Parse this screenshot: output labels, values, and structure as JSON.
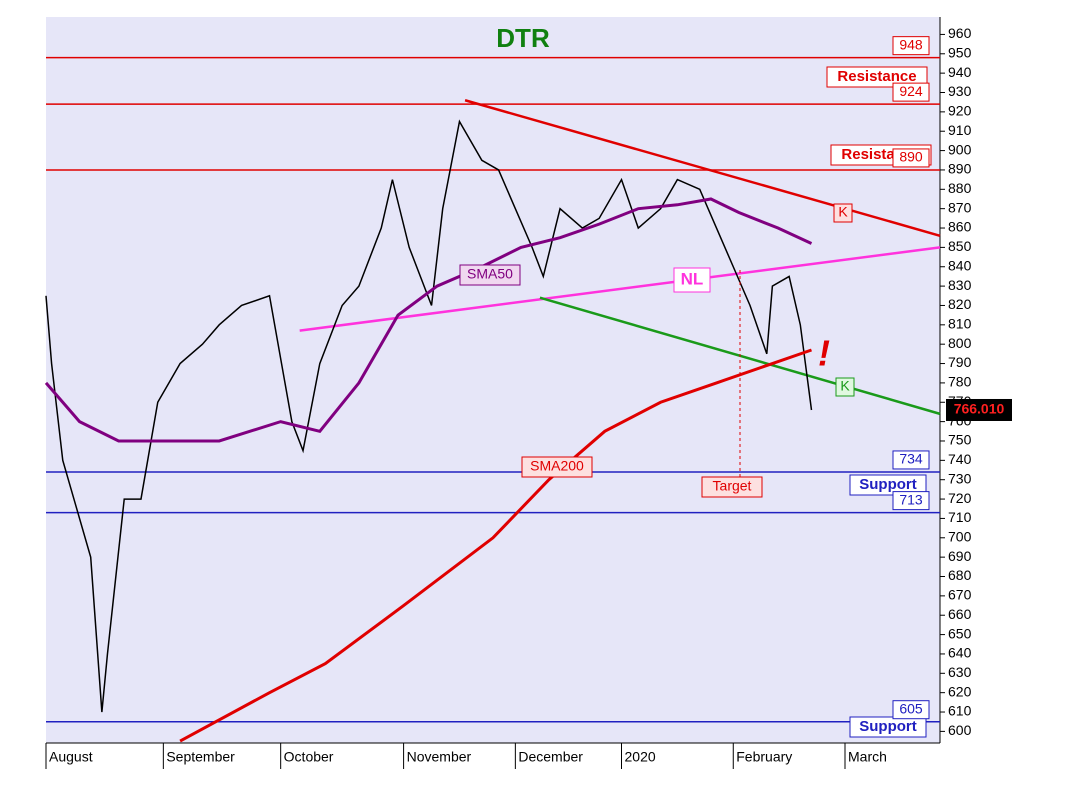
{
  "chart_data": {
    "type": "line",
    "title": "DTR",
    "xlim": [
      0,
      160
    ],
    "xticks": [
      {
        "value": 0,
        "label": "August"
      },
      {
        "value": 21,
        "label": "September"
      },
      {
        "value": 42,
        "label": "October"
      },
      {
        "value": 64,
        "label": "November"
      },
      {
        "value": 84,
        "label": "December"
      },
      {
        "value": 103,
        "label": "2020"
      },
      {
        "value": 123,
        "label": "February"
      },
      {
        "value": 143,
        "label": "March"
      }
    ],
    "ylim": [
      594,
      969
    ],
    "yticks": [
      600,
      610,
      620,
      630,
      640,
      650,
      660,
      670,
      680,
      690,
      700,
      710,
      720,
      730,
      740,
      750,
      760,
      770,
      780,
      790,
      800,
      810,
      820,
      830,
      840,
      850,
      860,
      870,
      880,
      890,
      900,
      910,
      920,
      930,
      940,
      950,
      960
    ],
    "series": [
      {
        "color": "#000000",
        "x": [
          0,
          1,
          3,
          5,
          8,
          10,
          11,
          14,
          17,
          20,
          24,
          28,
          31,
          35,
          40,
          44,
          46,
          49,
          53,
          56,
          60,
          62,
          65,
          69,
          71,
          74,
          78,
          81,
          84,
          87,
          89,
          92,
          96,
          99,
          103,
          106,
          110,
          113,
          117,
          120,
          123,
          126,
          129,
          130,
          133,
          135,
          137
        ],
        "values": [
          825,
          790,
          740,
          720,
          690,
          610,
          640,
          720,
          720,
          770,
          790,
          800,
          810,
          820,
          825,
          760,
          745,
          790,
          820,
          830,
          860,
          885,
          850,
          820,
          870,
          915,
          895,
          890,
          870,
          850,
          835,
          870,
          860,
          865,
          885,
          860,
          870,
          885,
          880,
          860,
          840,
          820,
          795,
          830,
          835,
          810,
          766
        ]
      },
      {
        "name": "SMA50",
        "color": "#800080",
        "x": [
          0,
          6,
          13,
          20,
          31,
          42,
          49,
          56,
          63,
          70,
          78,
          85,
          92,
          99,
          106,
          113,
          119,
          124,
          131,
          137
        ],
        "values": [
          780,
          760,
          750,
          750,
          750,
          760,
          755,
          780,
          815,
          830,
          840,
          850,
          855,
          862,
          870,
          872,
          875,
          868,
          860,
          852
        ]
      },
      {
        "name": "SMA200",
        "color": "#e00000",
        "x": [
          24,
          40,
          50,
          64,
          80,
          90,
          100,
          110,
          120,
          130,
          137
        ],
        "values": [
          595,
          620,
          635,
          665,
          700,
          730,
          755,
          770,
          780,
          790,
          797
        ]
      }
    ],
    "levels": [
      {
        "value": 948,
        "color": "#e00000"
      },
      {
        "value": 924,
        "color": "#e00000"
      },
      {
        "value": 890,
        "color": "#e00000"
      },
      {
        "value": 734,
        "color": "#2020c0"
      },
      {
        "value": 713,
        "color": "#2020c0"
      },
      {
        "value": 605,
        "color": "#2020c0"
      }
    ],
    "trendlines": [
      {
        "color": "#e00000",
        "x": [
          75,
          160
        ],
        "y": [
          926,
          856
        ]
      },
      {
        "color": "#ff33dd",
        "x": [
          45.4,
          160
        ],
        "y": [
          807,
          850
        ]
      },
      {
        "color": "#1a9a1a",
        "x": [
          88.4,
          160
        ],
        "y": [
          824,
          764
        ]
      }
    ],
    "last_price": {
      "value": 766.01,
      "label": "766.010"
    },
    "annotations": [
      "Resistance",
      "Resistance",
      "Support",
      "Support",
      "SMA50",
      "SMA200",
      "NL",
      "K",
      "K",
      "Target",
      "!"
    ]
  }
}
